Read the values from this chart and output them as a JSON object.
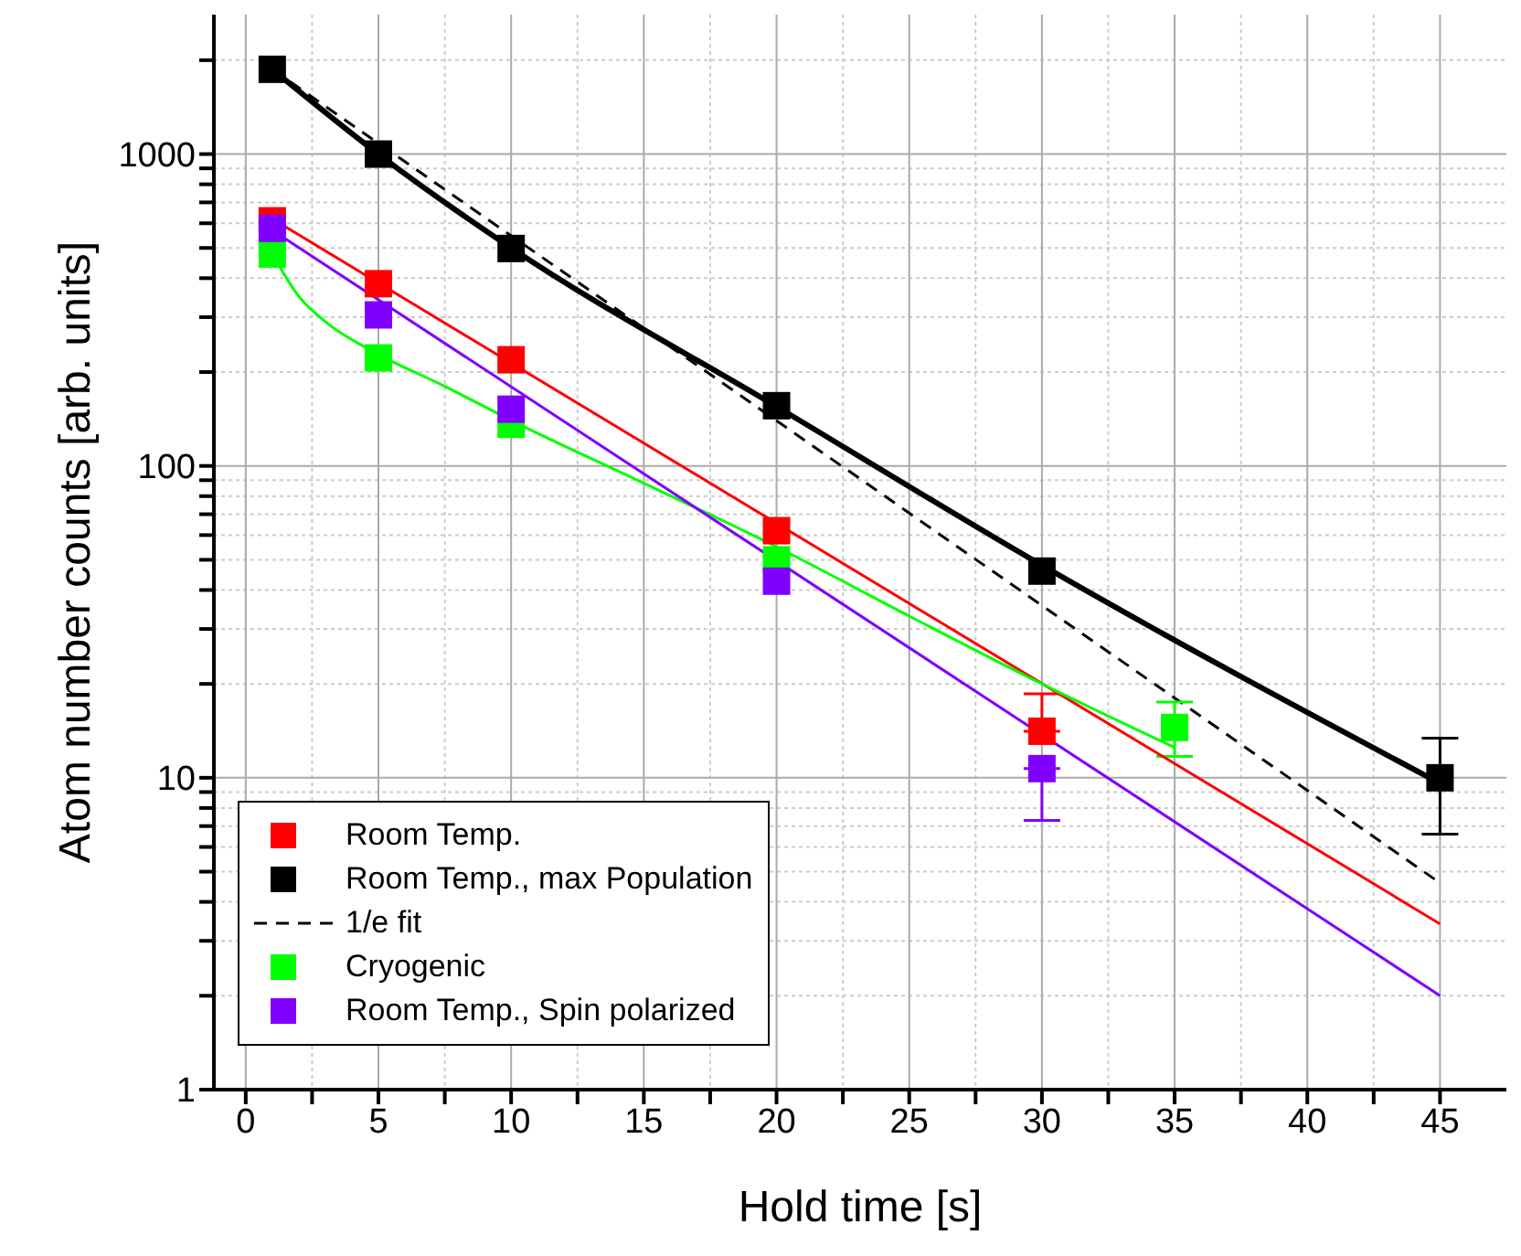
{
  "chart_data": {
    "type": "scatter",
    "xlabel": "Hold time [s]",
    "ylabel": "Atom number counts [arb. units]",
    "log": "y",
    "grid": true,
    "legend": "bottom left",
    "xlim": [
      -1.2,
      47.5
    ],
    "ylim": [
      1,
      2800
    ],
    "xticks": [
      0,
      {
        "value": 2.5,
        "label": null
      },
      5,
      {
        "value": 7.5,
        "label": null
      },
      10,
      {
        "value": 12.5,
        "label": null
      },
      15,
      {
        "value": 17.5,
        "label": null
      },
      20,
      {
        "value": 22.5,
        "label": null
      },
      25,
      {
        "value": 27.5,
        "label": null
      },
      30,
      {
        "value": 32.5,
        "label": null
      },
      35,
      {
        "value": 37.5,
        "label": null
      },
      40,
      {
        "value": 42.5,
        "label": null
      },
      45
    ],
    "yticks": [
      1,
      {
        "value": 2,
        "label": null
      },
      {
        "value": 3,
        "label": null
      },
      {
        "value": 4,
        "label": null
      },
      {
        "value": 5,
        "label": null
      },
      {
        "value": 6,
        "label": null
      },
      {
        "value": 7,
        "label": null
      },
      {
        "value": 8,
        "label": null
      },
      {
        "value": 9,
        "label": null
      },
      10,
      {
        "value": 20,
        "label": null
      },
      {
        "value": 30,
        "label": null
      },
      {
        "value": 40,
        "label": null
      },
      {
        "value": 50,
        "label": null
      },
      {
        "value": 60,
        "label": null
      },
      {
        "value": 70,
        "label": null
      },
      {
        "value": 80,
        "label": null
      },
      {
        "value": 90,
        "label": null
      },
      100,
      {
        "value": 200,
        "label": null
      },
      {
        "value": 300,
        "label": null
      },
      {
        "value": 400,
        "label": null
      },
      {
        "value": 500,
        "label": null
      },
      {
        "value": 600,
        "label": null
      },
      {
        "value": 700,
        "label": null
      },
      {
        "value": 800,
        "label": null
      },
      {
        "value": 900,
        "label": null
      },
      1000,
      {
        "value": 2000,
        "label": null
      }
    ],
    "series": [
      {
        "name": "Room Temp.",
        "marker": "square",
        "color": "#ff0000",
        "x": [
          1,
          5,
          10,
          20,
          30
        ],
        "values": [
          611,
          384,
          219,
          62,
          14.1
        ],
        "errors": [
          null,
          null,
          null,
          null,
          [
            14.1,
            18.6
          ]
        ]
      },
      {
        "name": "Room Temp., max Population",
        "marker": "square",
        "color": "#000000",
        "x": [
          1,
          5,
          10,
          20,
          30,
          45
        ],
        "values": [
          1870,
          1000,
          498,
          156,
          46,
          10
        ],
        "errors": [
          null,
          null,
          null,
          null,
          null,
          [
            6.6,
            13.4
          ]
        ]
      },
      {
        "name": "1/e fit",
        "type": "line",
        "line_style": "dashed",
        "color": "#000000",
        "x": [
          1,
          45
        ],
        "values": [
          1870,
          4.6
        ]
      },
      {
        "name": "Cryogenic",
        "marker": "square",
        "color": "#00ff00",
        "x": [
          1,
          5,
          10,
          20,
          35
        ],
        "values": [
          478,
          222,
          136,
          50,
          14.5
        ],
        "errors": [
          null,
          null,
          null,
          null,
          [
            11.7,
            17.5
          ]
        ]
      },
      {
        "name": "Room Temp., Spin polarized",
        "marker": "square",
        "color": "#8000ff",
        "x": [
          1,
          5,
          10,
          20,
          30
        ],
        "values": [
          578,
          305,
          152,
          42.7,
          10.7
        ],
        "errors": [
          null,
          null,
          null,
          null,
          [
            7.3,
            10.7
          ]
        ]
      },
      {
        "type": "line",
        "line_style": "solid",
        "color": "#ff0000",
        "x": [
          1,
          45
        ],
        "values": [
          620,
          3.4
        ]
      },
      {
        "type": "line",
        "line_style": "solid",
        "color": "#000000",
        "x": [
          1,
          5,
          10,
          20,
          30,
          45
        ],
        "values": [
          1870,
          1000,
          500,
          155,
          48,
          9.6
        ]
      },
      {
        "type": "line",
        "line_style": "solid",
        "color": "#00ff00",
        "x": [
          1,
          2,
          3,
          5,
          7.5,
          10,
          15,
          20,
          25,
          30,
          35
        ],
        "values": [
          478,
          350,
          290,
          228,
          180,
          140,
          88,
          55,
          33,
          20,
          12.5
        ]
      },
      {
        "type": "line",
        "line_style": "solid",
        "color": "#8000ff",
        "x": [
          1,
          45
        ],
        "values": [
          570,
          2.0
        ]
      }
    ]
  }
}
